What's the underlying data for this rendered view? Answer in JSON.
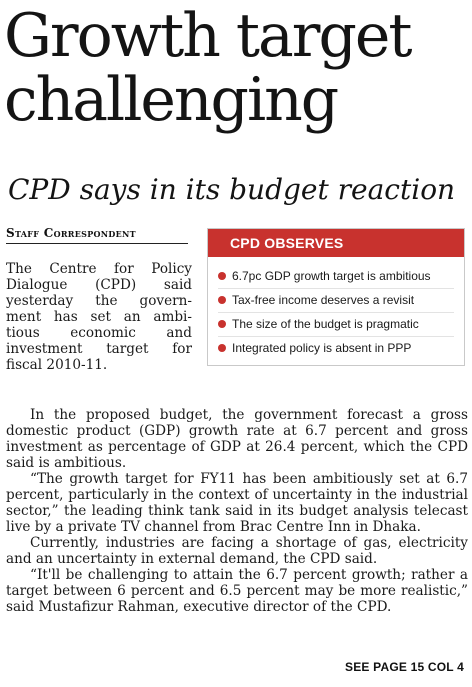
{
  "article": {
    "headline_line1": "Growth target",
    "headline_line2": "challenging",
    "subheadline": "CPD says in its budget reaction",
    "byline": "Staff Correspondent",
    "lede_lines": [
      "The Centre for Policy",
      "Dialogue (CPD) said",
      "yesterday the govern-",
      "ment has set an ambi-",
      "tious economic and",
      "investment target for",
      "fiscal 2010-11."
    ],
    "paragraphs": [
      "In the proposed budget, the government forecast a gross domestic product (GDP) growth rate at 6.7 percent and gross investment as percentage of GDP at 26.4 percent, which the CPD said is ambitious.",
      "“The growth target for FY11 has been ambitiously set at 6.7 percent, particularly in the context of uncertainty in the industrial sector,” the leading think tank said in its budget analysis telecast live by a private TV channel from Brac Centre Inn in Dhaka.",
      "Currently, industries are facing a shortage of gas, electricity and an uncertainty in external demand, the CPD said.",
      "“It'll be challenging to attain the 6.7 percent growth; rather a target between 6 percent and 6.5 percent may be more realistic,” said Mustafizur Rahman, executive director of the CPD."
    ],
    "jump_line": "SEE PAGE 15 COL 4"
  },
  "sidebar": {
    "title": "CPD OBSERVES",
    "accent_color": "#c8322e",
    "bullet_icon": "red-circle-bullet",
    "items": [
      "6.7pc GDP growth target is ambitious",
      "Tax-free income deserves a revisit",
      "The size of the budget is pragmatic",
      "Integrated policy is absent in PPP"
    ]
  }
}
